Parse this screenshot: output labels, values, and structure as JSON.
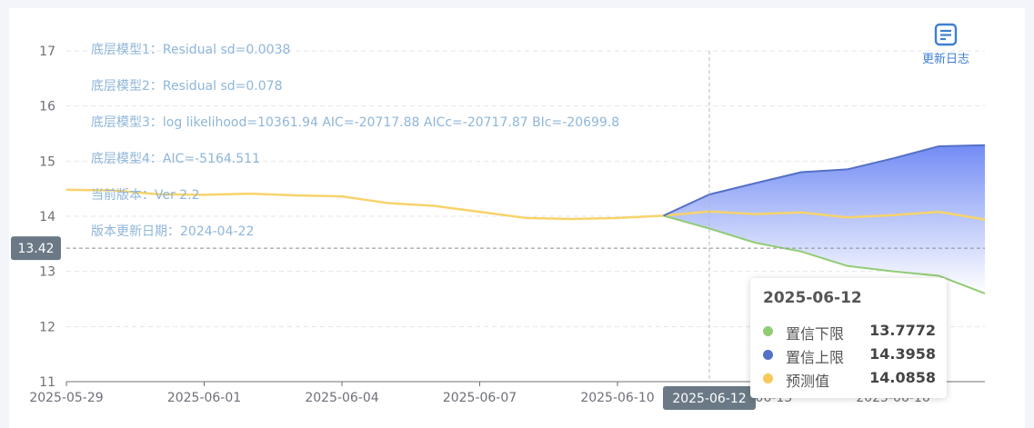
{
  "chart_data": {
    "type": "area",
    "x": [
      "2025-05-29",
      "2025-05-30",
      "2025-05-31",
      "2025-06-01",
      "2025-06-02",
      "2025-06-03",
      "2025-06-04",
      "2025-06-05",
      "2025-06-06",
      "2025-06-07",
      "2025-06-08",
      "2025-06-09",
      "2025-06-10",
      "2025-06-11",
      "2025-06-12",
      "2025-06-13",
      "2025-06-14",
      "2025-06-15",
      "2025-06-16",
      "2025-06-17",
      "2025-06-18"
    ],
    "x_ticks": [
      "2025-05-29",
      "2025-06-01",
      "2025-06-04",
      "2025-06-07",
      "2025-06-10",
      "2025-06-13",
      "2025-06-16"
    ],
    "ylim": [
      11,
      17
    ],
    "y_ticks": [
      11,
      12,
      13,
      14,
      15,
      16,
      17
    ],
    "grid": true,
    "series": [
      {
        "name": "预测值",
        "color": "#f7d36b",
        "values": [
          14.48,
          14.47,
          14.4,
          14.39,
          14.41,
          14.38,
          14.36,
          14.24,
          14.19,
          14.08,
          13.97,
          13.95,
          13.97,
          14.01,
          14.0858,
          14.04,
          14.07,
          13.98,
          14.02,
          14.08,
          13.94
        ]
      },
      {
        "name": "置信下限",
        "color": "#91cc75",
        "values": [
          null,
          null,
          null,
          null,
          null,
          null,
          null,
          null,
          null,
          null,
          null,
          null,
          null,
          14.01,
          13.7772,
          13.52,
          13.36,
          13.1,
          13.0,
          12.92,
          12.6
        ]
      },
      {
        "name": "置信上限",
        "color": "#5470c6",
        "values": [
          null,
          null,
          null,
          null,
          null,
          null,
          null,
          null,
          null,
          null,
          null,
          null,
          null,
          14.01,
          14.3958,
          14.6,
          14.8,
          14.85,
          15.05,
          15.27,
          15.29
        ]
      }
    ],
    "annotations": [
      "底层模型1：Residual sd=0.0038",
      "底层模型2：Residual sd=0.078",
      "底层模型3：log likelihood=10361.94 AIC=-20717.88 AICc=-20717.87 BIc=-20699.8",
      "底层模型4：AIC=-5164.511",
      "当前版本：Ver 2.2",
      "版本更新日期：2024-04-22"
    ],
    "crosshair": {
      "x": "2025-06-12",
      "y": 13.42,
      "x_label": "2025-06-12",
      "y_label": "13.42"
    },
    "tooltip": {
      "title": "2025-06-12",
      "rows": [
        {
          "name": "置信下限",
          "value": "13.7772",
          "color": "#91cc75"
        },
        {
          "name": "置信上限",
          "value": "14.3958",
          "color": "#5470c6"
        },
        {
          "name": "预测值",
          "value": "14.0858",
          "color": "#fac858"
        }
      ]
    },
    "band_gradient": [
      "#6b86f4",
      "#ffffff"
    ]
  },
  "toolbar": {
    "update_log_label": "更新日志",
    "update_log_icon": "document-list-icon",
    "accent": "#3f7fd3"
  }
}
